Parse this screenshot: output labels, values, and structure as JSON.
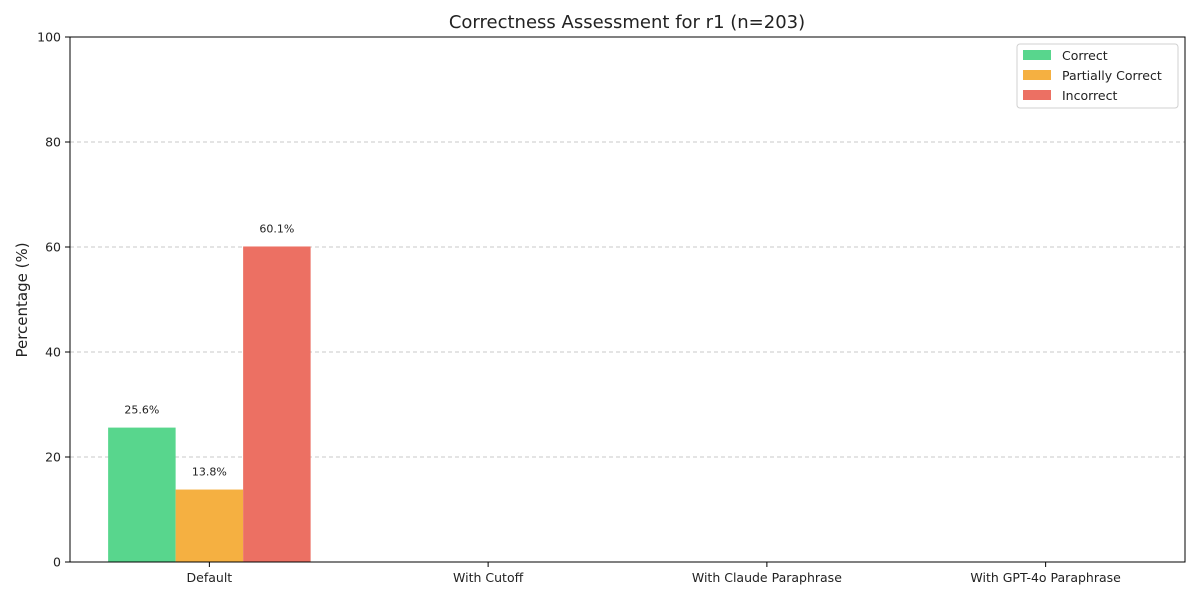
{
  "chart_data": {
    "type": "bar",
    "title": "Correctness Assessment for r1 (n=203)",
    "xlabel": "",
    "ylabel": "Percentage (%)",
    "ylim": [
      0,
      100
    ],
    "yticks": [
      0,
      20,
      40,
      60,
      80,
      100
    ],
    "grid": true,
    "legend_position": "top-right",
    "categories": [
      "Default",
      "With Cutoff",
      "With Claude Paraphrase",
      "With GPT-4o Paraphrase"
    ],
    "series": [
      {
        "name": "Correct",
        "color": "#58d68d",
        "values": [
          25.6,
          null,
          null,
          null
        ],
        "labels": [
          "25.6%",
          null,
          null,
          null
        ]
      },
      {
        "name": "Partially Correct",
        "color": "#f5b041",
        "values": [
          13.8,
          null,
          null,
          null
        ],
        "labels": [
          "13.8%",
          null,
          null,
          null
        ]
      },
      {
        "name": "Incorrect",
        "color": "#ec7063",
        "values": [
          60.1,
          null,
          null,
          null
        ],
        "labels": [
          "60.1%",
          null,
          null,
          null
        ]
      }
    ]
  }
}
